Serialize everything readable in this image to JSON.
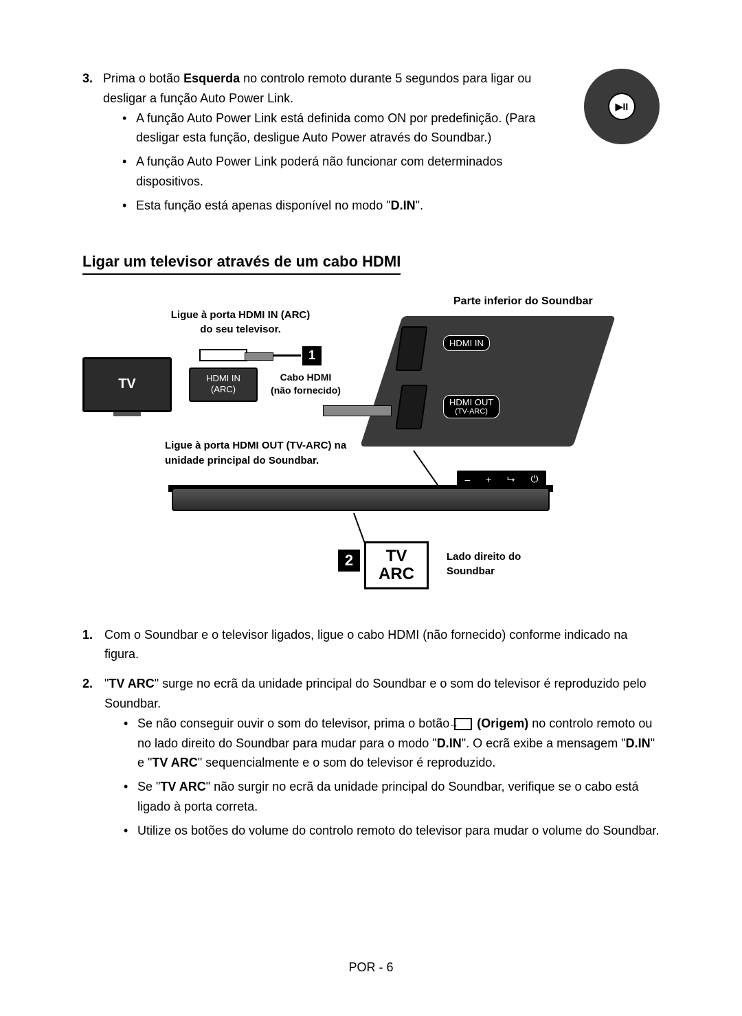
{
  "step3": {
    "num": "3.",
    "text_before": "Prima o botão ",
    "bold1": "Esquerda",
    "text_after": " no controlo remoto durante 5 segundos para ligar ou desligar a função Auto Power Link.",
    "bullets": [
      "A função Auto Power Link está definida como ON por predefinição. (Para desligar esta função, desligue Auto Power através do Soundbar.)",
      "A função Auto Power Link poderá não funcionar com determinados dispositivos."
    ],
    "bullet3_before": "Esta função está apenas disponível no modo \"",
    "bullet3_bold": "D.IN",
    "bullet3_after": "\"."
  },
  "remote_icon": "▶II",
  "heading": "Ligar um televisor através de um cabo HDMI",
  "diagram": {
    "top_right": "Parte inferior do Soundbar",
    "top_left": "Ligue à porta HDMI IN (ARC) do seu televisor.",
    "tv": "TV",
    "hdmi_in_arc_l1": "HDMI IN",
    "hdmi_in_arc_l2": "(ARC)",
    "cabo_l1": "Cabo HDMI",
    "cabo_l2": "(não fornecido)",
    "port_in": "HDMI IN",
    "port_out": "HDMI OUT",
    "port_out_sub": "(TV-ARC)",
    "mid_left": "Ligue à porta HDMI OUT (TV-ARC) na unidade principal do Soundbar.",
    "controls": {
      "minus": "–",
      "plus": "+",
      "src": "⮡",
      "power": "⏻"
    },
    "badge1": "1",
    "badge2": "2",
    "tvarc_l1": "TV",
    "tvarc_l2": "ARC",
    "right_side": "Lado direito do Soundbar"
  },
  "steps": {
    "s1": {
      "num": "1.",
      "text": "Com o Soundbar e o televisor ligados, ligue o cabo HDMI (não fornecido) conforme indicado na figura."
    },
    "s2": {
      "num": "2.",
      "p1": "\"",
      "p1b": "TV ARC",
      "p2": "\" surge no ecrã da unidade principal do Soundbar e o som do televisor é reproduzido pelo Soundbar.",
      "b1_1": "Se não conseguir ouvir o som do televisor, prima o botão ",
      "b1_origem": "(Origem)",
      "b1_2": " no controlo remoto ou no lado direito do Soundbar para mudar para o modo \"",
      "b1_din": "D.IN",
      "b1_3": "\". O ecrã exibe a mensagem \"",
      "b1_din2": "D.IN",
      "b1_4": "\" e \"",
      "b1_tvarc": "TV ARC",
      "b1_5": "\" sequencialmente e o som do televisor é reproduzido.",
      "b2_1": "Se \"",
      "b2_tvarc": "TV ARC",
      "b2_2": "\" não surgir no ecrã da unidade principal do Soundbar, verifique se o cabo está ligado à porta correta.",
      "b3": "Utilize os botões do volume do controlo remoto do televisor para mudar o volume do Soundbar."
    }
  },
  "footer": "POR - 6"
}
